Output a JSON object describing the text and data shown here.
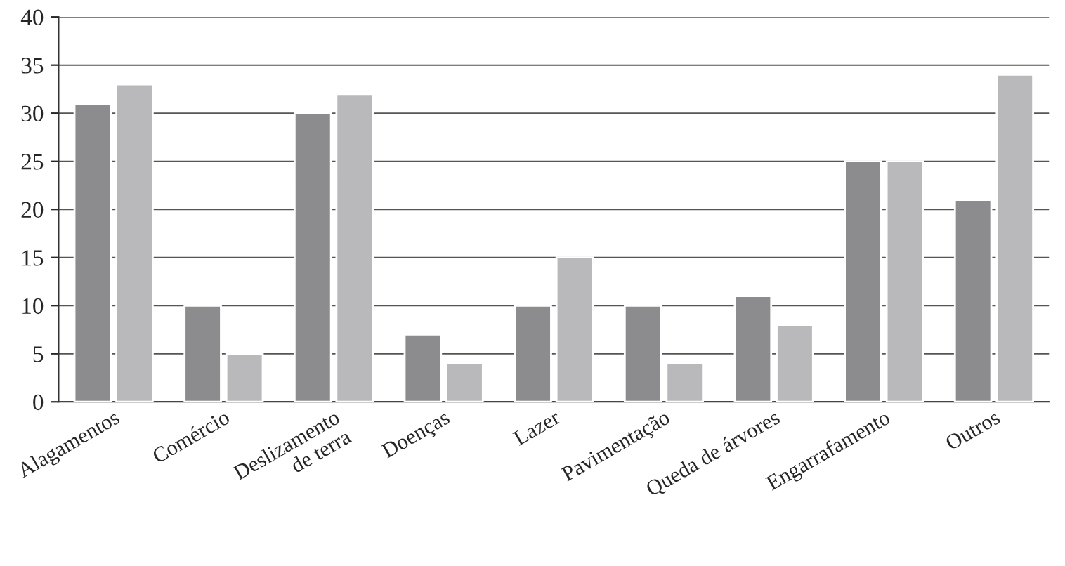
{
  "chart_data": {
    "type": "bar",
    "categories": [
      "Alagamentos",
      "Comércio",
      "Deslizamento\nde terra",
      "Doenças",
      "Lazer",
      "Pavimentação",
      "Queda de árvores",
      "Engarrafamento",
      "Outros"
    ],
    "series": [
      {
        "color": "#8c8c8e",
        "values": [
          31,
          10,
          30,
          7,
          10,
          10,
          11,
          25,
          21
        ]
      },
      {
        "color": "#b9b9bb",
        "values": [
          33,
          5,
          32,
          4,
          15,
          4,
          8,
          25,
          34
        ]
      }
    ],
    "ylim": [
      0,
      40
    ],
    "yticks": [
      0,
      5,
      10,
      15,
      20,
      25,
      30,
      35,
      40
    ],
    "grid": "y"
  }
}
